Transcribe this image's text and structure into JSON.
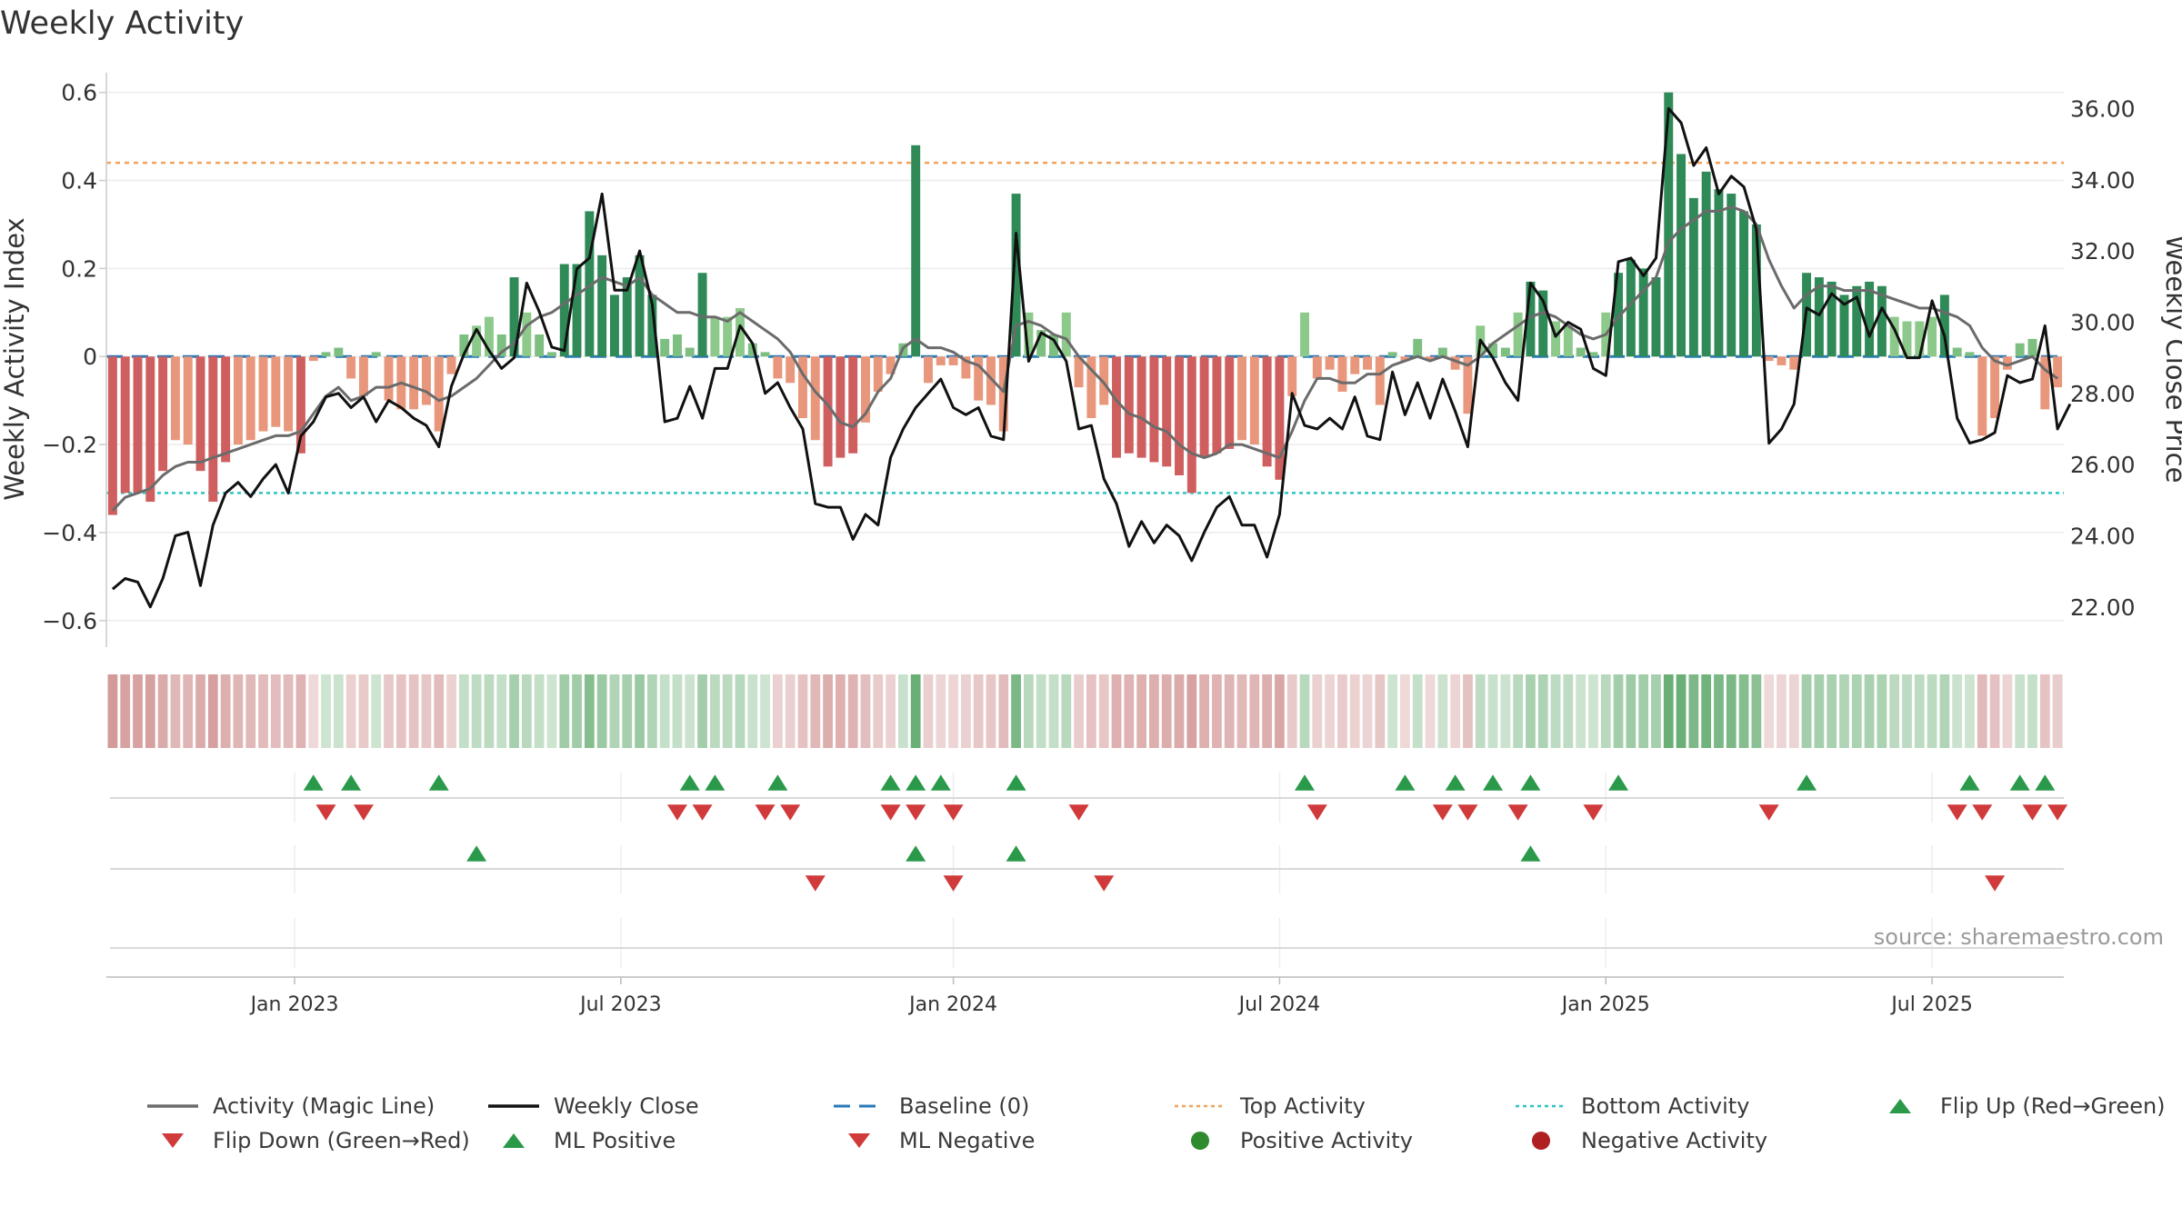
{
  "chart_data": {
    "type": "bar",
    "title": "Weekly Activity",
    "ylabel": "Weekly Activity Index",
    "y2label": "Weekly Close Price",
    "ylim": [
      -0.65,
      0.62
    ],
    "y2lim": [
      21.0,
      36.7
    ],
    "yticks": [
      {
        "v": 0.6,
        "label": "0.6"
      },
      {
        "v": 0.4,
        "label": "0.4"
      },
      {
        "v": 0.2,
        "label": "0.2"
      },
      {
        "v": 0,
        "label": "0"
      },
      {
        "v": -0.2,
        "label": "−0.2"
      },
      {
        "v": -0.4,
        "label": "−0.4"
      },
      {
        "v": -0.6,
        "label": "−0.6"
      }
    ],
    "y2ticks": [
      {
        "v": 36,
        "label": "36.00"
      },
      {
        "v": 34,
        "label": "34.00"
      },
      {
        "v": 32,
        "label": "32.00"
      },
      {
        "v": 30,
        "label": "30.00"
      },
      {
        "v": 28,
        "label": "28.00"
      },
      {
        "v": 26,
        "label": "26.00"
      },
      {
        "v": 24,
        "label": "24.00"
      },
      {
        "v": 22,
        "label": "22.00"
      }
    ],
    "xticks": [
      {
        "week": 15,
        "label": "Jan 2023"
      },
      {
        "week": 41,
        "label": "Jul 2023"
      },
      {
        "week": 67.5,
        "label": "Jan 2024"
      },
      {
        "week": 93.5,
        "label": "Jul 2024"
      },
      {
        "week": 119.5,
        "label": "Jan 2025"
      },
      {
        "week": 145.5,
        "label": "Jul 2025"
      }
    ],
    "top_activity": 0.44,
    "bottom_activity": -0.31,
    "activity": [
      -0.36,
      -0.31,
      -0.31,
      -0.33,
      -0.26,
      -0.19,
      -0.2,
      -0.26,
      -0.33,
      -0.24,
      -0.2,
      -0.19,
      -0.17,
      -0.16,
      -0.17,
      -0.22,
      -0.01,
      0.01,
      0.02,
      -0.05,
      -0.09,
      0.01,
      -0.1,
      -0.12,
      -0.12,
      -0.11,
      -0.17,
      -0.04,
      0.05,
      0.07,
      0.09,
      0.05,
      0.18,
      0.1,
      0.05,
      0.01,
      0.21,
      0.21,
      0.33,
      0.23,
      0.14,
      0.18,
      0.23,
      0.14,
      0.04,
      0.05,
      0.02,
      0.19,
      0.09,
      0.09,
      0.11,
      0.03,
      0.01,
      -0.05,
      -0.06,
      -0.14,
      -0.19,
      -0.25,
      -0.23,
      -0.22,
      -0.15,
      -0.08,
      -0.04,
      0.03,
      0.48,
      -0.06,
      -0.02,
      -0.02,
      -0.05,
      -0.1,
      -0.11,
      -0.17,
      0.37,
      0.1,
      0.06,
      0.05,
      0.1,
      -0.07,
      -0.14,
      -0.11,
      -0.23,
      -0.22,
      -0.23,
      -0.24,
      -0.25,
      -0.27,
      -0.31,
      -0.23,
      -0.22,
      -0.21,
      -0.19,
      -0.2,
      -0.25,
      -0.28,
      -0.09,
      0.1,
      -0.05,
      -0.03,
      -0.08,
      -0.04,
      -0.03,
      -0.11,
      0.01,
      -0.01,
      0.04,
      -0.01,
      0.02,
      -0.03,
      -0.13,
      0.07,
      0.03,
      0.02,
      0.1,
      0.17,
      0.15,
      0.08,
      0.07,
      0.02,
      0.01,
      0.1,
      0.19,
      0.22,
      0.2,
      0.18,
      0.6,
      0.46,
      0.36,
      0.42,
      0.38,
      0.37,
      0.33,
      0.3,
      -0.01,
      -0.02,
      -0.03,
      0.19,
      0.18,
      0.17,
      0.14,
      0.16,
      0.17,
      0.16,
      0.09,
      0.08,
      0.08,
      0.09,
      0.14,
      0.02,
      0.01,
      -0.18,
      -0.14,
      -0.03,
      0.03,
      0.04,
      -0.12,
      -0.07
    ],
    "magic_line": [
      -0.35,
      -0.32,
      -0.31,
      -0.3,
      -0.27,
      -0.25,
      -0.24,
      -0.24,
      -0.23,
      -0.22,
      -0.21,
      -0.2,
      -0.19,
      -0.18,
      -0.18,
      -0.17,
      -0.13,
      -0.09,
      -0.07,
      -0.1,
      -0.09,
      -0.07,
      -0.07,
      -0.06,
      -0.07,
      -0.08,
      -0.1,
      -0.09,
      -0.07,
      -0.05,
      -0.02,
      0.01,
      0.03,
      0.07,
      0.09,
      0.1,
      0.12,
      0.14,
      0.16,
      0.18,
      0.17,
      0.16,
      0.18,
      0.14,
      0.12,
      0.1,
      0.1,
      0.09,
      0.09,
      0.08,
      0.1,
      0.08,
      0.06,
      0.04,
      0.01,
      -0.04,
      -0.08,
      -0.11,
      -0.15,
      -0.16,
      -0.13,
      -0.08,
      -0.05,
      0.02,
      0.04,
      0.02,
      0.02,
      0.01,
      -0.01,
      -0.02,
      -0.05,
      -0.08,
      0.07,
      0.08,
      0.07,
      0.05,
      0.04,
      0.0,
      -0.03,
      -0.06,
      -0.1,
      -0.13,
      -0.14,
      -0.16,
      -0.17,
      -0.2,
      -0.22,
      -0.23,
      -0.22,
      -0.2,
      -0.2,
      -0.21,
      -0.22,
      -0.23,
      -0.17,
      -0.1,
      -0.05,
      -0.05,
      -0.06,
      -0.06,
      -0.04,
      -0.04,
      -0.02,
      -0.01,
      0.0,
      -0.01,
      0.0,
      -0.01,
      -0.02,
      0.0,
      0.03,
      0.05,
      0.07,
      0.09,
      0.1,
      0.09,
      0.07,
      0.05,
      0.04,
      0.05,
      0.09,
      0.12,
      0.15,
      0.18,
      0.26,
      0.29,
      0.31,
      0.33,
      0.33,
      0.34,
      0.33,
      0.3,
      0.22,
      0.16,
      0.11,
      0.14,
      0.16,
      0.16,
      0.15,
      0.15,
      0.15,
      0.14,
      0.13,
      0.12,
      0.11,
      0.11,
      0.1,
      0.09,
      0.07,
      0.02,
      -0.01,
      -0.02,
      -0.01,
      0.0,
      -0.03,
      -0.05
    ],
    "weekly_close": [
      22.5,
      22.8,
      22.7,
      22.0,
      22.8,
      24.0,
      24.1,
      22.6,
      24.3,
      25.2,
      25.5,
      25.1,
      25.6,
      26.0,
      25.2,
      26.8,
      27.2,
      27.9,
      28.0,
      27.6,
      27.9,
      27.2,
      27.8,
      27.6,
      27.3,
      27.1,
      26.5,
      28.2,
      29.1,
      29.8,
      29.2,
      28.7,
      29.0,
      31.1,
      30.3,
      29.3,
      29.2,
      31.5,
      31.8,
      33.6,
      30.9,
      30.9,
      32.0,
      30.5,
      27.2,
      27.3,
      28.2,
      27.3,
      28.7,
      28.7,
      29.9,
      29.4,
      28.0,
      28.3,
      27.6,
      27.0,
      24.9,
      24.8,
      24.8,
      23.9,
      24.6,
      24.3,
      26.2,
      27.0,
      27.6,
      28.0,
      28.4,
      27.6,
      27.4,
      27.6,
      26.8,
      26.7,
      32.5,
      28.9,
      29.7,
      29.5,
      28.9,
      27.0,
      27.1,
      25.6,
      24.9,
      23.7,
      24.4,
      23.8,
      24.3,
      24.0,
      23.3,
      24.1,
      24.8,
      25.1,
      24.3,
      24.3,
      23.4,
      24.6,
      28.0,
      27.1,
      27.0,
      27.3,
      27.0,
      27.9,
      26.8,
      26.7,
      28.6,
      27.4,
      28.3,
      27.3,
      28.4,
      27.5,
      26.5,
      29.5,
      29.0,
      28.3,
      27.8,
      31.1,
      30.6,
      29.6,
      30.0,
      29.8,
      28.7,
      28.5,
      31.7,
      31.8,
      31.3,
      31.8,
      36.0,
      35.6,
      34.4,
      34.9,
      33.6,
      34.1,
      33.8,
      32.6,
      26.6,
      27.0,
      27.7,
      30.4,
      30.2,
      30.8,
      30.5,
      30.7,
      29.6,
      30.4,
      29.8,
      29.0,
      29.0,
      30.6,
      29.6,
      27.3,
      26.6,
      26.7,
      26.9,
      28.5,
      28.3,
      28.4,
      29.9,
      27.0,
      27.7
    ],
    "bar_colors": [
      "#6aa86f",
      "#5f9f6b",
      "#56b36a",
      "#e39a7a",
      "#d46f63",
      "#c85a5a"
    ],
    "heat_colors": {
      "red": "#c98080",
      "green": "#5da86a"
    },
    "series_colors": {
      "magic_line": "#6b6b6b",
      "weekly_close": "#111111",
      "baseline": "#2a7ab8",
      "top": "#f0a35e",
      "bottom": "#2ec4c4",
      "up": "#2a9a4a",
      "down": "#d03a3a"
    },
    "flip_up_weeks": [
      16,
      19,
      26,
      46,
      48,
      53,
      62,
      64,
      66,
      72,
      95,
      103,
      107,
      110,
      113,
      120,
      135,
      148,
      152,
      154
    ],
    "flip_down_weeks": [
      17,
      20,
      45,
      47,
      52,
      54,
      62,
      64,
      67,
      77,
      96,
      106,
      108,
      112,
      118,
      132,
      147,
      149,
      153,
      155
    ],
    "ml_positive_weeks": [
      29,
      64,
      72,
      113
    ],
    "ml_negative_weeks": [
      56,
      67,
      79,
      150
    ],
    "source": "source: sharemaestro.com"
  },
  "legend": [
    {
      "label": "Activity (Magic Line)",
      "symbol": "line",
      "color": "#6b6b6b"
    },
    {
      "label": "Weekly Close",
      "symbol": "line",
      "color": "#111111"
    },
    {
      "label": "Baseline (0)",
      "symbol": "dash",
      "color": "#2a7ab8"
    },
    {
      "label": "Top Activity",
      "symbol": "dot-line",
      "color": "#f0a35e"
    },
    {
      "label": "Bottom Activity",
      "symbol": "dot-line",
      "color": "#2ec4c4"
    },
    {
      "label": "Flip Up (Red→Green)",
      "symbol": "tri-up",
      "color": "#2a9a4a"
    },
    {
      "label": "Flip Down (Green→Red)",
      "symbol": "tri-down",
      "color": "#d03a3a"
    },
    {
      "label": "ML Positive",
      "symbol": "tri-up",
      "color": "#2a9a4a"
    },
    {
      "label": "ML Negative",
      "symbol": "tri-down",
      "color": "#d03a3a"
    },
    {
      "label": "Positive Activity",
      "symbol": "circle",
      "color": "#2e8b2e"
    },
    {
      "label": "Negative Activity",
      "symbol": "circle",
      "color": "#b02020"
    }
  ]
}
